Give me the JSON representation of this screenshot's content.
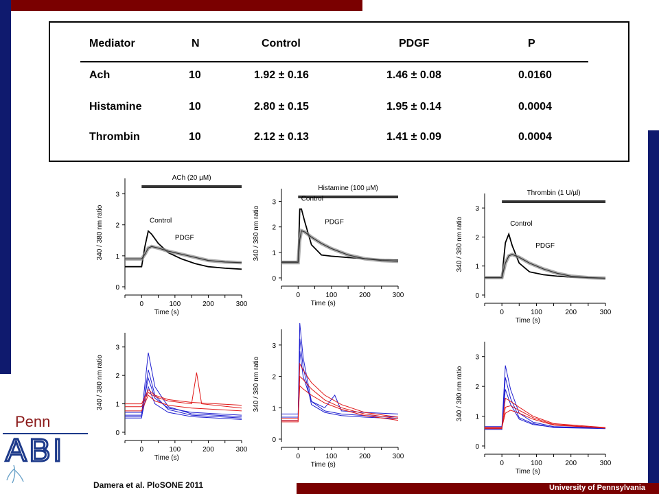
{
  "table": {
    "headers": [
      "Mediator",
      "N",
      "Control",
      "PDGF",
      "P"
    ],
    "rows": [
      [
        "Ach",
        "10",
        "1.92 ± 0.16",
        "1.46 ± 0.08",
        "0.0160"
      ],
      [
        "Histamine",
        "10",
        "2.80 ± 0.15",
        "1.95 ± 0.14",
        "0.0004"
      ],
      [
        "Thrombin",
        "10",
        "2.12 ± 0.13",
        "1.41 ± 0.09",
        "0.0004"
      ]
    ]
  },
  "citation": "Damera et al. PloSONE 2011",
  "footer": "University of Pennsylvania",
  "logo": {
    "top_text": "Penn",
    "main_text": "ABI"
  },
  "colors": {
    "maroon": "#7a0000",
    "navy": "#0f1a6e",
    "control_blue": "#1f1fd0",
    "pdgf_red": "#e01818",
    "mean_gray": "#8a8a8a"
  },
  "chart_data": [
    {
      "type": "line",
      "stimulus_label": "ACh (20 µM)",
      "xlabel": "Time (s)",
      "ylabel": "340 / 380 nm ratio",
      "xticks": [
        0,
        100,
        200,
        300
      ],
      "yticks": [
        0,
        1,
        2,
        3
      ],
      "xlim": [
        -50,
        300
      ],
      "ylim": [
        0,
        3.5
      ],
      "series": [
        {
          "name": "Control",
          "x": [
            -50,
            0,
            10,
            20,
            30,
            50,
            80,
            120,
            160,
            200,
            250,
            300
          ],
          "y": [
            0.65,
            0.65,
            1.3,
            1.8,
            1.7,
            1.4,
            1.1,
            0.9,
            0.75,
            0.65,
            0.6,
            0.57
          ]
        },
        {
          "name": "PDGF",
          "x": [
            -50,
            0,
            10,
            20,
            30,
            50,
            80,
            120,
            160,
            200,
            250,
            300
          ],
          "y": [
            0.9,
            0.9,
            1.05,
            1.25,
            1.3,
            1.25,
            1.15,
            1.05,
            0.95,
            0.85,
            0.8,
            0.78
          ]
        }
      ]
    },
    {
      "type": "line",
      "stimulus_label": "Histamine (100 µM)",
      "xlabel": "Time (s)",
      "ylabel": "340 / 380 nm ratio",
      "xticks": [
        0,
        100,
        200,
        300
      ],
      "yticks": [
        0,
        1,
        2,
        3
      ],
      "xlim": [
        -50,
        300
      ],
      "ylim": [
        0,
        3.5
      ],
      "series": [
        {
          "name": "Control",
          "x": [
            -50,
            0,
            5,
            10,
            20,
            40,
            70,
            100,
            150,
            200,
            250,
            300
          ],
          "y": [
            0.65,
            0.65,
            2.7,
            2.7,
            2.2,
            1.3,
            0.9,
            0.85,
            0.8,
            0.75,
            0.72,
            0.7
          ]
        },
        {
          "name": "PDGF",
          "x": [
            -50,
            0,
            5,
            10,
            20,
            40,
            70,
            100,
            150,
            200,
            250,
            300
          ],
          "y": [
            0.6,
            0.6,
            1.5,
            1.85,
            1.8,
            1.6,
            1.35,
            1.15,
            0.9,
            0.75,
            0.68,
            0.65
          ]
        }
      ]
    },
    {
      "type": "line",
      "stimulus_label": "Thrombin (1 U/µl)",
      "xlabel": "Time (s)",
      "ylabel": "340 / 380 nm ratio",
      "xticks": [
        0,
        100,
        200,
        300
      ],
      "yticks": [
        0,
        1,
        2,
        3
      ],
      "xlim": [
        -50,
        300
      ],
      "ylim": [
        0,
        3.5
      ],
      "series": [
        {
          "name": "Control",
          "x": [
            -50,
            0,
            10,
            20,
            30,
            50,
            80,
            120,
            160,
            200,
            250,
            300
          ],
          "y": [
            0.6,
            0.6,
            1.8,
            2.1,
            1.7,
            1.1,
            0.8,
            0.7,
            0.65,
            0.62,
            0.6,
            0.58
          ]
        },
        {
          "name": "PDGF",
          "x": [
            -50,
            0,
            10,
            20,
            30,
            50,
            80,
            120,
            160,
            200,
            250,
            300
          ],
          "y": [
            0.6,
            0.6,
            1.1,
            1.35,
            1.4,
            1.3,
            1.1,
            0.9,
            0.75,
            0.65,
            0.6,
            0.58
          ]
        }
      ]
    },
    {
      "type": "line",
      "xlabel": "Time (s)",
      "ylabel": "340 / 380 nm ratio",
      "xticks": [
        0,
        100,
        200,
        300
      ],
      "yticks": [
        0,
        1,
        2,
        3
      ],
      "xlim": [
        -50,
        300
      ],
      "ylim": [
        0,
        3.5
      ],
      "series": [
        {
          "x": [
            -50,
            0,
            20,
            40,
            80,
            150,
            300
          ],
          "y": [
            0.6,
            0.6,
            2.8,
            1.6,
            0.9,
            0.65,
            0.55
          ]
        },
        {
          "x": [
            -50,
            0,
            20,
            40,
            80,
            150,
            300
          ],
          "y": [
            0.5,
            0.5,
            2.2,
            1.3,
            0.8,
            0.6,
            0.5
          ]
        },
        {
          "x": [
            -50,
            0,
            20,
            40,
            80,
            150,
            300
          ],
          "y": [
            0.7,
            0.7,
            1.9,
            1.2,
            0.85,
            0.7,
            0.6
          ]
        },
        {
          "x": [
            -50,
            0,
            20,
            40,
            80,
            150,
            300
          ],
          "y": [
            0.55,
            0.55,
            1.6,
            1.0,
            0.7,
            0.55,
            0.45
          ]
        },
        {
          "x": [
            -50,
            0,
            20,
            40,
            80,
            150,
            300
          ],
          "y": [
            1.0,
            1.0,
            1.5,
            1.3,
            1.15,
            1.05,
            0.95
          ]
        },
        {
          "x": [
            -50,
            0,
            20,
            40,
            80,
            150,
            165,
            180,
            300
          ],
          "y": [
            0.9,
            0.9,
            1.4,
            1.25,
            1.1,
            1.0,
            2.1,
            1.0,
            0.85
          ]
        },
        {
          "x": [
            -50,
            0,
            20,
            40,
            80,
            150,
            300
          ],
          "y": [
            0.75,
            0.75,
            1.3,
            1.1,
            0.95,
            0.85,
            0.75
          ]
        }
      ]
    },
    {
      "type": "line",
      "xlabel": "Time (s)",
      "ylabel": "340 / 380 nm ratio",
      "xticks": [
        0,
        100,
        200,
        300
      ],
      "yticks": [
        0,
        1,
        2,
        3
      ],
      "xlim": [
        -50,
        300
      ],
      "ylim": [
        0,
        3.5
      ],
      "series": [
        {
          "x": [
            -50,
            0,
            5,
            15,
            40,
            80,
            130,
            200,
            300
          ],
          "y": [
            0.7,
            0.7,
            3.7,
            2.6,
            1.2,
            0.9,
            0.8,
            0.75,
            0.7
          ]
        },
        {
          "x": [
            -50,
            0,
            5,
            15,
            40,
            80,
            130,
            200,
            300
          ],
          "y": [
            0.6,
            0.6,
            3.2,
            2.3,
            1.1,
            0.85,
            0.75,
            0.7,
            0.65
          ]
        },
        {
          "x": [
            -50,
            0,
            5,
            15,
            40,
            80,
            110,
            130,
            200,
            300
          ],
          "y": [
            0.8,
            0.8,
            2.8,
            2.0,
            1.2,
            1.0,
            1.4,
            0.9,
            0.85,
            0.8
          ]
        },
        {
          "x": [
            -50,
            0,
            5,
            15,
            40,
            80,
            130,
            200,
            300
          ],
          "y": [
            0.6,
            0.6,
            2.4,
            2.2,
            1.8,
            1.4,
            1.1,
            0.85,
            0.7
          ]
        },
        {
          "x": [
            -50,
            0,
            5,
            15,
            40,
            80,
            130,
            200,
            300
          ],
          "y": [
            0.55,
            0.55,
            2.0,
            1.9,
            1.6,
            1.25,
            1.0,
            0.8,
            0.65
          ]
        },
        {
          "x": [
            -50,
            0,
            5,
            15,
            40,
            80,
            130,
            200,
            300
          ],
          "y": [
            0.65,
            0.65,
            1.7,
            1.6,
            1.4,
            1.15,
            0.95,
            0.75,
            0.6
          ]
        }
      ]
    },
    {
      "type": "line",
      "xlabel": "Time (s)",
      "ylabel": "340 / 380 nm ratio",
      "xticks": [
        0,
        100,
        200,
        300
      ],
      "yticks": [
        0,
        1,
        2,
        3
      ],
      "xlim": [
        -50,
        300
      ],
      "ylim": [
        0,
        3.5
      ],
      "series": [
        {
          "x": [
            -50,
            0,
            10,
            25,
            50,
            90,
            150,
            300
          ],
          "y": [
            0.6,
            0.6,
            2.7,
            1.9,
            1.1,
            0.8,
            0.65,
            0.6
          ]
        },
        {
          "x": [
            -50,
            0,
            10,
            25,
            50,
            90,
            150,
            300
          ],
          "y": [
            0.55,
            0.55,
            2.3,
            1.6,
            0.95,
            0.75,
            0.62,
            0.58
          ]
        },
        {
          "x": [
            -50,
            0,
            10,
            25,
            50,
            90,
            150,
            300
          ],
          "y": [
            0.65,
            0.65,
            1.9,
            1.4,
            0.9,
            0.72,
            0.63,
            0.6
          ]
        },
        {
          "x": [
            -50,
            0,
            10,
            25,
            50,
            90,
            150,
            300
          ],
          "y": [
            0.6,
            0.6,
            1.6,
            1.5,
            1.3,
            1.0,
            0.75,
            0.62
          ]
        },
        {
          "x": [
            -50,
            0,
            10,
            25,
            50,
            90,
            150,
            300
          ],
          "y": [
            0.58,
            0.58,
            1.3,
            1.35,
            1.2,
            0.95,
            0.72,
            0.6
          ]
        },
        {
          "x": [
            -50,
            0,
            10,
            25,
            50,
            90,
            150,
            300
          ],
          "y": [
            0.62,
            0.62,
            1.1,
            1.2,
            1.1,
            0.9,
            0.7,
            0.6
          ]
        }
      ]
    }
  ]
}
